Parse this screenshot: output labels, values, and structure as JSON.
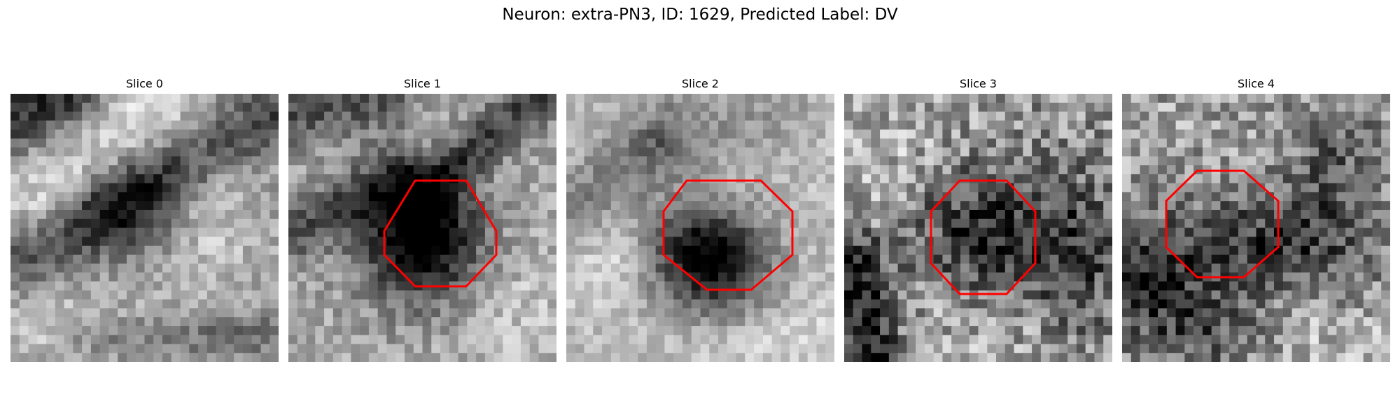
{
  "figure": {
    "title": "Neuron: extra-PN3, ID: 1629, Predicted Label: DV"
  },
  "panels": [
    {
      "title": "Slice 0",
      "roi": false
    },
    {
      "title": "Slice 1",
      "roi": true
    },
    {
      "title": "Slice 2",
      "roi": true
    },
    {
      "title": "Slice 3",
      "roi": true
    },
    {
      "title": "Slice 4",
      "roi": true
    }
  ],
  "colors": {
    "roi_outline": "#ff0000",
    "background": "#ffffff"
  }
}
